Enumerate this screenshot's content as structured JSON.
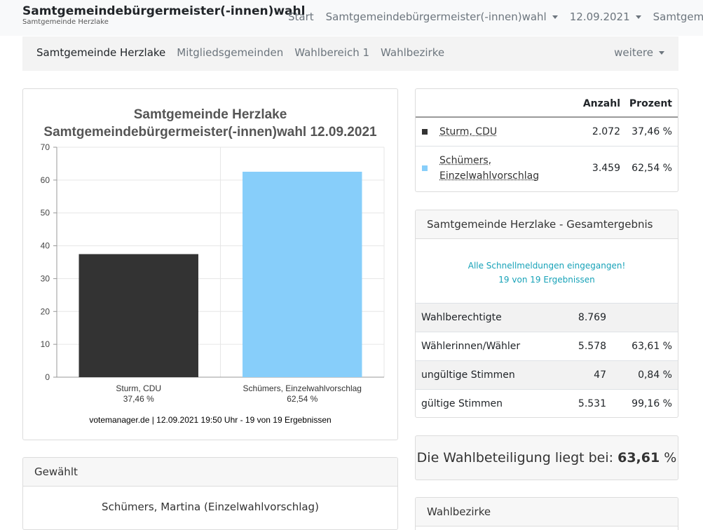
{
  "navbar": {
    "title": "Samtgemeindebürgermeister(-innen)wahl",
    "subtitle": "Samtgemeinde Herzlake",
    "items": [
      {
        "label": "Start"
      },
      {
        "label": "Samtgemeindebürgermeister(-innen)wahl"
      },
      {
        "label": "12.09.2021"
      },
      {
        "label": "Samtgemeinde"
      }
    ]
  },
  "subnav": {
    "items": [
      "Samtgemeinde Herzlake",
      "Mitgliedsgemeinden",
      "Wahlbereich 1",
      "Wahlbezirke"
    ],
    "more": "weitere"
  },
  "chart": {
    "title_line1": "Samtgemeinde Herzlake",
    "title_line2": "Samtgemeindebürgermeister(-innen)wahl 12.09.2021",
    "footer": "votemanager.de | 12.09.2021 19:50 Uhr - 19 von 19 Ergebnissen"
  },
  "chart_data": {
    "type": "bar",
    "title": "Samtgemeinde Herzlake Samtgemeindebürgermeister(-innen)wahl 12.09.2021",
    "categories": [
      "Sturm, CDU",
      "Schümers, Einzelwahlvorschlag"
    ],
    "category_sublabels": [
      "37,46 %",
      "62,54 %"
    ],
    "values": [
      37.46,
      62.54
    ],
    "colors": [
      "#333333",
      "#87cefa"
    ],
    "ylim": [
      0,
      70
    ],
    "yticks": [
      0,
      10,
      20,
      30,
      40,
      50,
      60,
      70
    ],
    "grid": true
  },
  "candidates": {
    "header_count": "Anzahl",
    "header_percent": "Prozent",
    "rows": [
      {
        "name": "Sturm, CDU",
        "count": "2.072",
        "percent": "37,46 %",
        "color": "#333333"
      },
      {
        "name": "Schümers, Einzelwahlvorschlag",
        "name_line1": "Schümers,",
        "name_line2": "Einzelwahlvorschlag",
        "count": "3.459",
        "percent": "62,54 %",
        "color": "#87cefa"
      }
    ]
  },
  "result": {
    "header": "Samtgemeinde Herzlake - Gesamtergebnis",
    "status_line1": "Alle Schnellmeldungen eingegangen!",
    "status_line2": "19 von 19 Ergebnissen",
    "rows": [
      {
        "label": "Wahlberechtigte",
        "value": "8.769",
        "percent": ""
      },
      {
        "label": "Wählerinnen/Wähler",
        "value": "5.578",
        "percent": "63,61 %"
      },
      {
        "label": "ungültige Stimmen",
        "value": "47",
        "percent": "0,84 %"
      },
      {
        "label": "gültige Stimmen",
        "value": "5.531",
        "percent": "99,16 %"
      }
    ]
  },
  "turnout": {
    "prefix": "Die Wahlbeteiligung liegt bei:",
    "value": "63,61",
    "suffix": "%"
  },
  "elected": {
    "header": "Gewählt",
    "name": "Schümers, Martina (Einzelwahlvorschlag)"
  },
  "districts": {
    "header": "Wahlbezirke"
  }
}
